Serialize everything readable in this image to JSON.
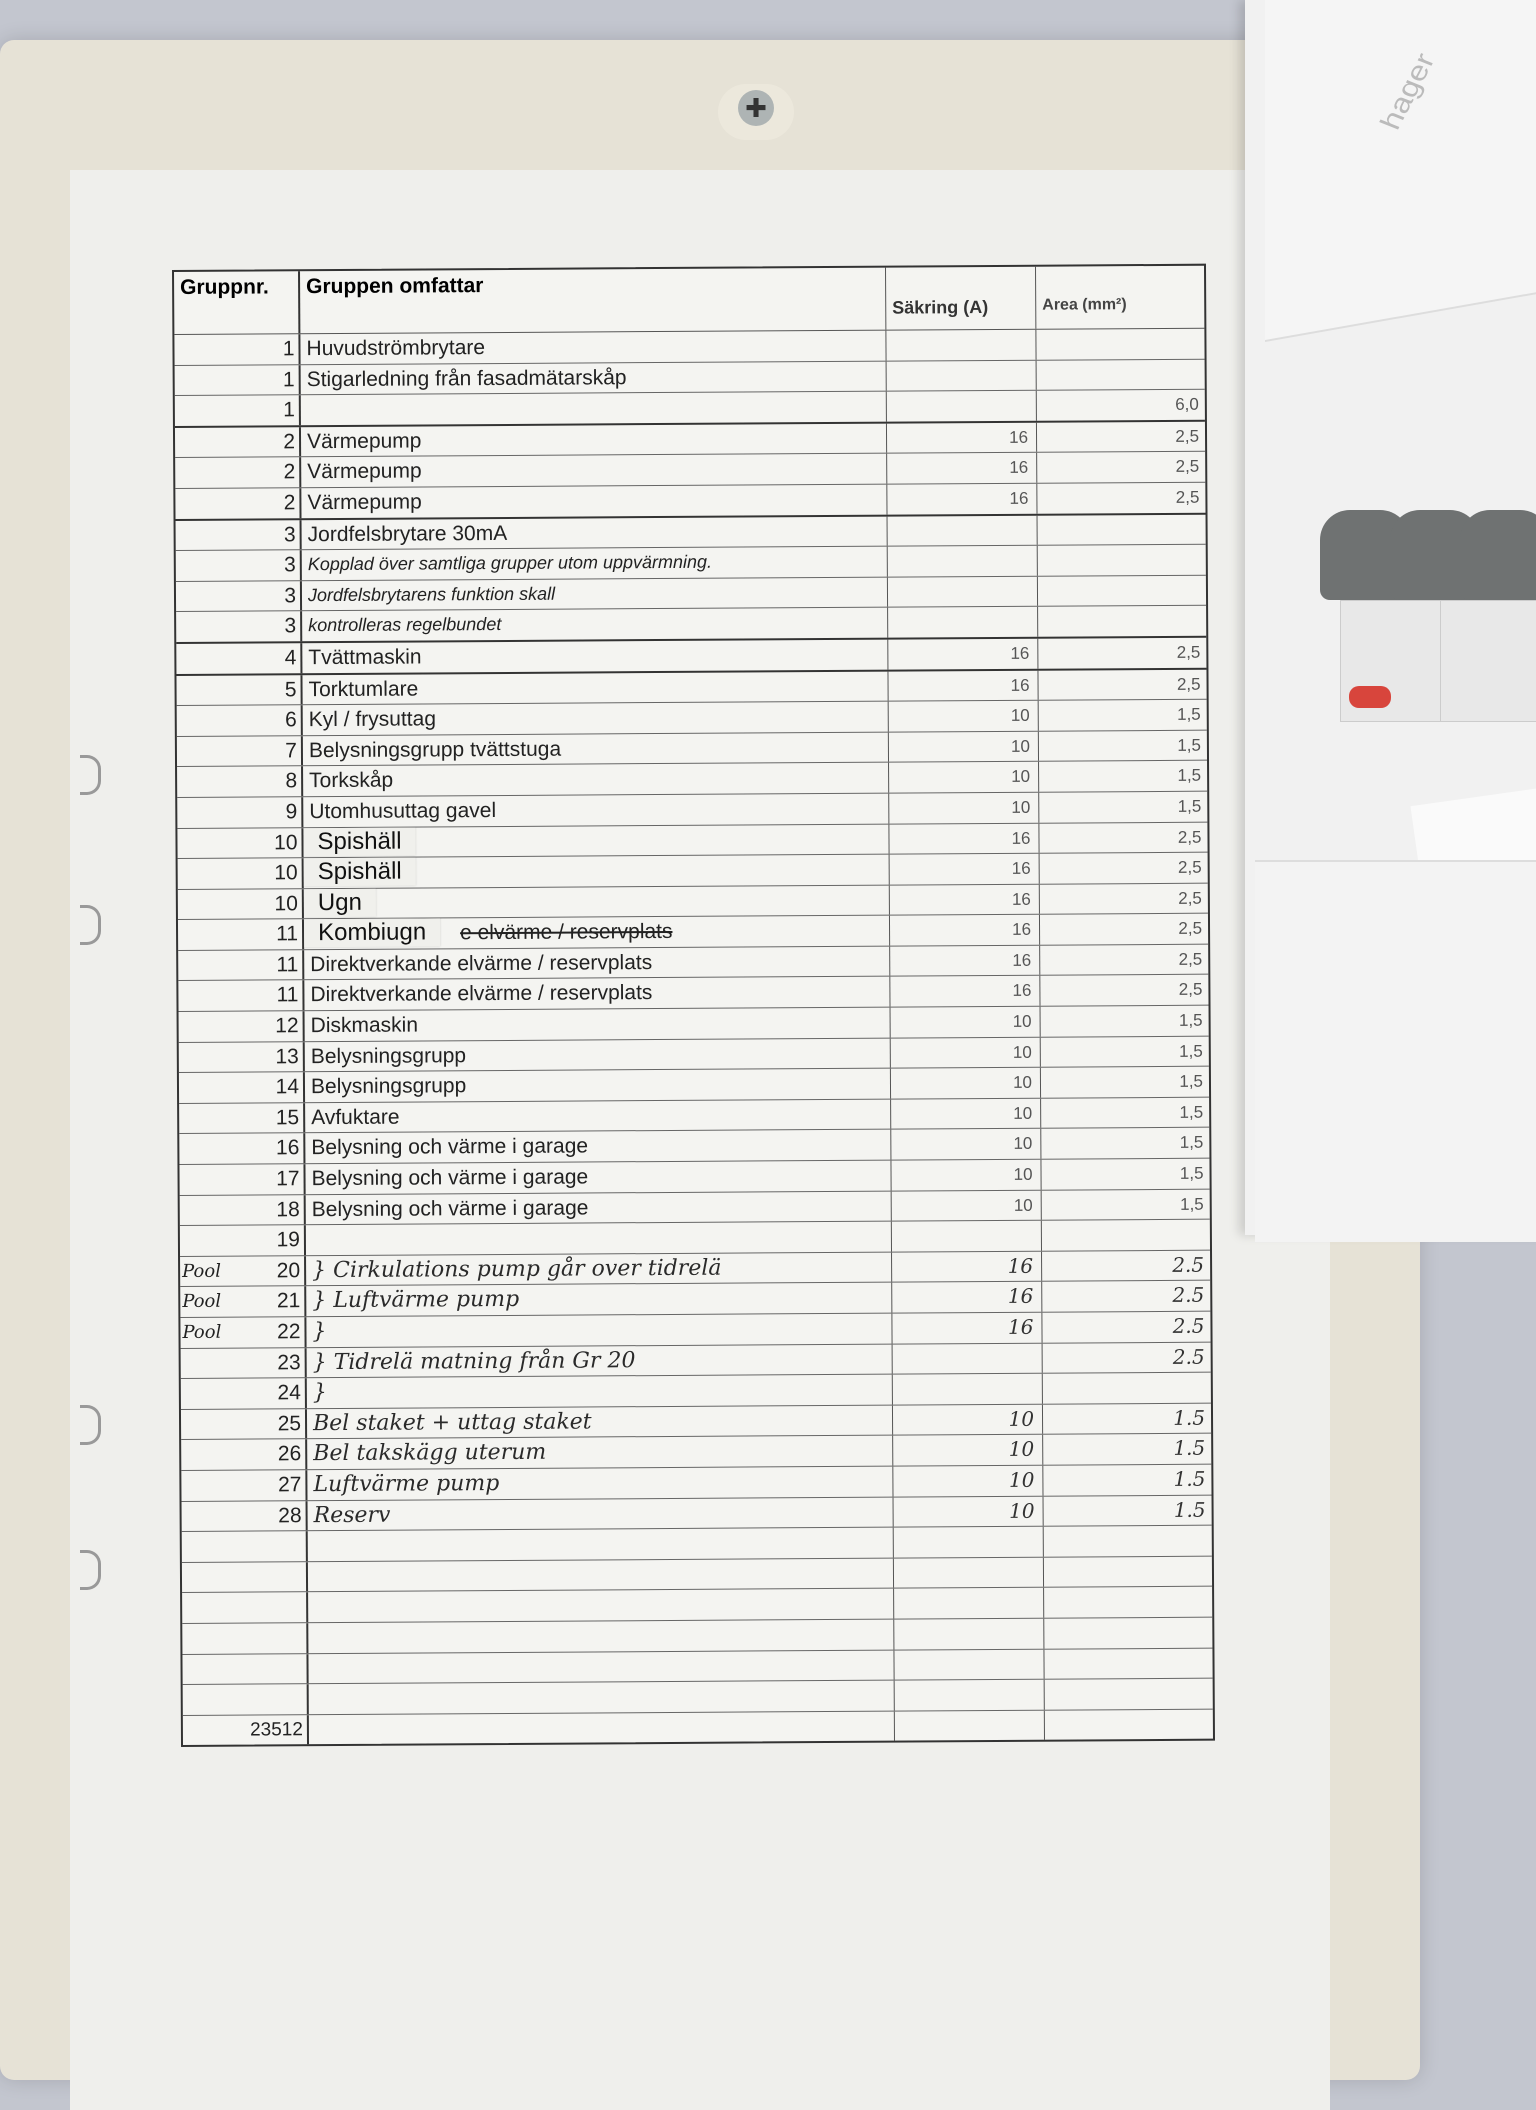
{
  "document": {
    "headers": {
      "group": "Gruppnr.",
      "description": "Gruppen omfattar",
      "fuse": "Säkring (A)",
      "area": "Area (mm²)"
    },
    "rows": [
      {
        "no": "1",
        "desc": "Huvudströmbrytare",
        "fuse": "",
        "area": ""
      },
      {
        "no": "1",
        "desc": "Stigarledning från fasadmätarskåp",
        "fuse": "",
        "area": ""
      },
      {
        "no": "1",
        "desc": "",
        "fuse": "",
        "area": "6,0"
      },
      {
        "no": "2",
        "desc": "Värmepump",
        "fuse": "16",
        "area": "2,5"
      },
      {
        "no": "2",
        "desc": "Värmepump",
        "fuse": "16",
        "area": "2,5"
      },
      {
        "no": "2",
        "desc": "Värmepump",
        "fuse": "16",
        "area": "2,5"
      },
      {
        "no": "3",
        "desc": "Jordfelsbrytare 30mA",
        "fuse": "",
        "area": ""
      },
      {
        "no": "3",
        "desc": "Kopplad över samtliga grupper utom uppvärmning.",
        "fuse": "",
        "area": "",
        "style": "italic"
      },
      {
        "no": "3",
        "desc": "Jordfelsbrytarens funktion skall",
        "fuse": "",
        "area": "",
        "style": "italic"
      },
      {
        "no": "3",
        "desc": "kontrolleras regelbundet",
        "fuse": "",
        "area": "",
        "style": "italic"
      },
      {
        "no": "4",
        "desc": "Tvättmaskin",
        "fuse": "16",
        "area": "2,5"
      },
      {
        "no": "5",
        "desc": "Torktumlare",
        "fuse": "16",
        "area": "2,5"
      },
      {
        "no": "6",
        "desc": "Kyl / frysuttag",
        "fuse": "10",
        "area": "1,5"
      },
      {
        "no": "7",
        "desc": "Belysningsgrupp tvättstuga",
        "fuse": "10",
        "area": "1,5"
      },
      {
        "no": "8",
        "desc": "Torkskåp",
        "fuse": "10",
        "area": "1,5"
      },
      {
        "no": "9",
        "desc": "Utomhusuttag gavel",
        "fuse": "10",
        "area": "1,5"
      },
      {
        "no": "10",
        "desc": "",
        "label": "Spishäll",
        "fuse": "16",
        "area": "2,5"
      },
      {
        "no": "10",
        "desc": "",
        "label": "Spishäll",
        "fuse": "16",
        "area": "2,5"
      },
      {
        "no": "10",
        "desc": "",
        "label": "Ugn",
        "fuse": "16",
        "area": "2,5"
      },
      {
        "no": "11",
        "desc": "e elvärme / reservplats",
        "label": "Kombiugn",
        "fuse": "16",
        "area": "2,5",
        "style": "strike"
      },
      {
        "no": "11",
        "desc": "Direktverkande elvärme / reservplats",
        "fuse": "16",
        "area": "2,5"
      },
      {
        "no": "11",
        "desc": "Direktverkande elvärme / reservplats",
        "fuse": "16",
        "area": "2,5"
      },
      {
        "no": "12",
        "desc": "Diskmaskin",
        "fuse": "10",
        "area": "1,5"
      },
      {
        "no": "13",
        "desc": "Belysningsgrupp",
        "fuse": "10",
        "area": "1,5"
      },
      {
        "no": "14",
        "desc": "Belysningsgrupp",
        "fuse": "10",
        "area": "1,5"
      },
      {
        "no": "15",
        "desc": "Avfuktare",
        "fuse": "10",
        "area": "1,5"
      },
      {
        "no": "16",
        "desc": "Belysning och värme i garage",
        "fuse": "10",
        "area": "1,5"
      },
      {
        "no": "17",
        "desc": "Belysning och värme i garage",
        "fuse": "10",
        "area": "1,5"
      },
      {
        "no": "18",
        "desc": "Belysning och värme i garage",
        "fuse": "10",
        "area": "1,5"
      },
      {
        "no": "19",
        "desc": "",
        "fuse": "",
        "area": ""
      },
      {
        "no": "20",
        "pool": "Pool",
        "desc": "} Cirkulations pump går over tidrelä",
        "fuse": "16",
        "area": "2.5",
        "style": "hand"
      },
      {
        "no": "21",
        "pool": "Pool",
        "desc": "} Luftvärme pump",
        "fuse": "16",
        "area": "2.5",
        "style": "hand"
      },
      {
        "no": "22",
        "pool": "Pool",
        "desc": "}",
        "fuse": "16",
        "area": "2.5",
        "style": "hand"
      },
      {
        "no": "23",
        "desc": "} Tidrelä matning från Gr 20",
        "fuse": "",
        "area": "2.5",
        "style": "hand"
      },
      {
        "no": "24",
        "desc": "}",
        "fuse": "",
        "area": "",
        "style": "hand"
      },
      {
        "no": "25",
        "desc": "Bel staket + uttag staket",
        "fuse": "10",
        "area": "1.5",
        "style": "hand"
      },
      {
        "no": "26",
        "desc": "Bel takskägg uterum",
        "fuse": "10",
        "area": "1.5",
        "style": "hand"
      },
      {
        "no": "27",
        "desc": "Luftvärme pump",
        "fuse": "10",
        "area": "1.5",
        "style": "hand"
      },
      {
        "no": "28",
        "desc": "Reserv",
        "fuse": "10",
        "area": "1.5",
        "style": "hand"
      },
      {
        "no": "",
        "desc": "",
        "fuse": "",
        "area": ""
      },
      {
        "no": "",
        "desc": "",
        "fuse": "",
        "area": ""
      },
      {
        "no": "",
        "desc": "",
        "fuse": "",
        "area": ""
      },
      {
        "no": "",
        "desc": "",
        "fuse": "",
        "area": ""
      },
      {
        "no": "",
        "desc": "",
        "fuse": "",
        "area": ""
      },
      {
        "no": "",
        "desc": "",
        "fuse": "",
        "area": ""
      }
    ],
    "form_number": "23512"
  },
  "fusebox": {
    "brand": "hager"
  },
  "colors": {
    "wall": "#c3c6cf",
    "frame": "#e6e2d6",
    "paper": "#efefec",
    "breaker_handle": "#6f7272",
    "breaker_mark": "#d8453c"
  }
}
